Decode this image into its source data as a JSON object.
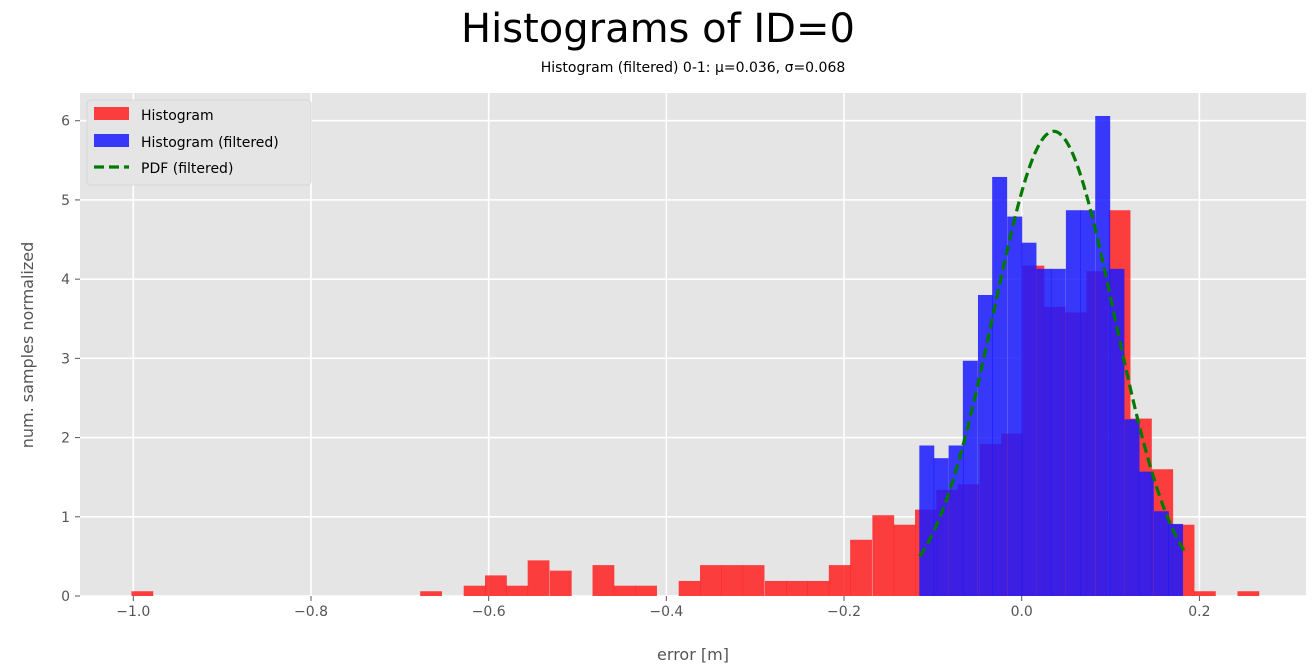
{
  "chart_data": {
    "type": "histogram",
    "title": "Histograms of ID=0",
    "subtitle": "Histogram (filtered) 0-1: μ=0.036, σ=0.068",
    "xlabel": "error [m]",
    "ylabel": "num. samples normalized",
    "xlim": [
      -1.06,
      0.32
    ],
    "ylim": [
      0,
      6.35
    ],
    "xticks": [
      -1.0,
      -0.8,
      -0.6,
      -0.4,
      -0.2,
      0.0,
      0.2
    ],
    "xtick_labels": [
      "−1.0",
      "−0.8",
      "−0.6",
      "−0.4",
      "−0.2",
      "0.0",
      "0.2"
    ],
    "yticks": [
      0,
      1,
      2,
      3,
      4,
      5,
      6
    ],
    "ytick_labels": [
      "0",
      "1",
      "2",
      "3",
      "4",
      "5",
      "6"
    ],
    "grid": true,
    "legend_position": "top-left",
    "colors": {
      "histogram": "#ff2020",
      "histogram_filtered": "#1a1aff",
      "pdf": "#007a00",
      "background": "#e5e5e5",
      "grid": "#ffffff"
    },
    "series": [
      {
        "name": "Histogram",
        "bin_width": 0.0242,
        "bins": [
          [
            -0.99,
            0.06
          ],
          [
            -0.665,
            0.06
          ],
          [
            -0.616,
            0.13
          ],
          [
            -0.592,
            0.26
          ],
          [
            -0.568,
            0.13
          ],
          [
            -0.544,
            0.45
          ],
          [
            -0.519,
            0.32
          ],
          [
            -0.471,
            0.39
          ],
          [
            -0.447,
            0.13
          ],
          [
            -0.423,
            0.13
          ],
          [
            -0.374,
            0.19
          ],
          [
            -0.35,
            0.39
          ],
          [
            -0.326,
            0.39
          ],
          [
            -0.302,
            0.39
          ],
          [
            -0.277,
            0.19
          ],
          [
            -0.253,
            0.19
          ],
          [
            -0.229,
            0.19
          ],
          [
            -0.205,
            0.39
          ],
          [
            -0.181,
            0.71
          ],
          [
            -0.156,
            1.02
          ],
          [
            -0.132,
            0.9
          ],
          [
            -0.108,
            1.09
          ],
          [
            -0.084,
            1.34
          ],
          [
            -0.06,
            1.41
          ],
          [
            -0.035,
            1.92
          ],
          [
            -0.011,
            2.05
          ],
          [
            0.013,
            4.17
          ],
          [
            0.037,
            3.65
          ],
          [
            0.061,
            3.58
          ],
          [
            0.085,
            4.1
          ],
          [
            0.11,
            4.87
          ],
          [
            0.134,
            2.24
          ],
          [
            0.158,
            1.6
          ],
          [
            0.182,
            0.9
          ],
          [
            0.206,
            0.06
          ],
          [
            0.255,
            0.06
          ]
        ]
      },
      {
        "name": "Histogram (filtered)",
        "bin_width": 0.0165,
        "bins": [
          [
            -0.107,
            1.9
          ],
          [
            -0.091,
            1.74
          ],
          [
            -0.074,
            1.9
          ],
          [
            -0.058,
            2.97
          ],
          [
            -0.041,
            3.8
          ],
          [
            -0.025,
            5.29
          ],
          [
            -0.008,
            4.79
          ],
          [
            0.008,
            4.46
          ],
          [
            0.025,
            4.13
          ],
          [
            0.041,
            4.13
          ],
          [
            0.058,
            4.87
          ],
          [
            0.074,
            4.87
          ],
          [
            0.091,
            6.06
          ],
          [
            0.107,
            4.13
          ],
          [
            0.124,
            2.23
          ],
          [
            0.14,
            1.57
          ],
          [
            0.157,
            1.07
          ],
          [
            0.173,
            0.91
          ]
        ]
      },
      {
        "name": "PDF (filtered)",
        "mu": 0.036,
        "sigma": 0.068,
        "x": [
          -0.115,
          0.185
        ]
      }
    ]
  }
}
